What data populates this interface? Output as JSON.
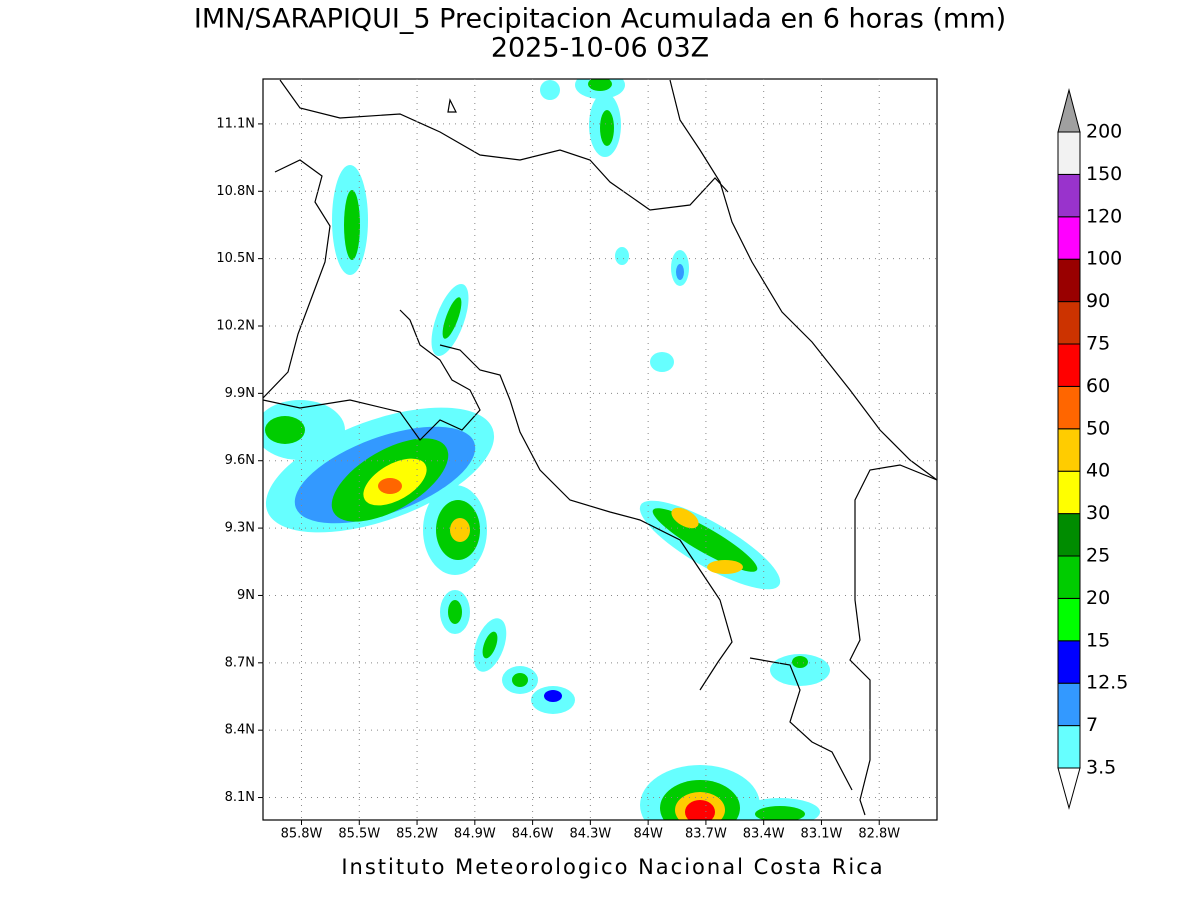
{
  "title": "IMN/SARAPIQUI_5 Precipitacion Acumulada en 6 horas (mm)",
  "subtitle": "2025-10-06 03Z",
  "map": {
    "xlim": [
      -86.0,
      -82.5
    ],
    "ylim": [
      8.0,
      11.3
    ],
    "grid": true,
    "lon_ticks": [
      {
        "value": -85.8,
        "label": "85.8W"
      },
      {
        "value": -85.5,
        "label": "85.5W"
      },
      {
        "value": -85.2,
        "label": "85.2W"
      },
      {
        "value": -84.9,
        "label": "84.9W"
      },
      {
        "value": -84.6,
        "label": "84.6W"
      },
      {
        "value": -84.3,
        "label": "84.3W"
      },
      {
        "value": -84.0,
        "label": "84W"
      },
      {
        "value": -83.7,
        "label": "83.7W"
      },
      {
        "value": -83.4,
        "label": "83.4W"
      },
      {
        "value": -83.1,
        "label": "83.1W"
      },
      {
        "value": -82.8,
        "label": "82.8W"
      }
    ],
    "lat_ticks": [
      {
        "value": 11.1,
        "label": "11.1N"
      },
      {
        "value": 10.8,
        "label": "10.8N"
      },
      {
        "value": 10.5,
        "label": "10.5N"
      },
      {
        "value": 10.2,
        "label": "10.2N"
      },
      {
        "value": 9.9,
        "label": "9.9N"
      },
      {
        "value": 9.6,
        "label": "9.6N"
      },
      {
        "value": 9.3,
        "label": "9.3N"
      },
      {
        "value": 9.0,
        "label": "9N"
      },
      {
        "value": 8.7,
        "label": "8.7N"
      },
      {
        "value": 8.4,
        "label": "8.4N"
      },
      {
        "value": 8.1,
        "label": "8.1N"
      }
    ]
  },
  "colorbar": {
    "levels": [
      3.5,
      7,
      12.5,
      15,
      20,
      25,
      30,
      40,
      50,
      60,
      75,
      90,
      100,
      120,
      150,
      200
    ],
    "colors": [
      "#66ffff",
      "#3399ff",
      "#0000ff",
      "#00ff00",
      "#00cc00",
      "#008c00",
      "#ffff00",
      "#ffcc00",
      "#ff6600",
      "#ff0000",
      "#cc3300",
      "#990000",
      "#ff00ff",
      "#9933cc",
      "#f2f2f2"
    ],
    "under_color": "#ffffff",
    "over_color": "#a0a0a0"
  },
  "footer": "Instituto Meteorologico Nacional Costa Rica"
}
